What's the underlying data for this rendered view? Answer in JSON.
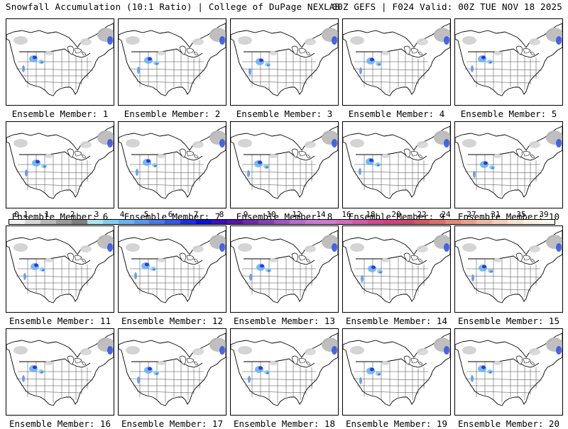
{
  "header": {
    "left": "Snowfall Accumulation (10:1 Ratio) | College of DuPage NEXLAB",
    "right": "00Z GEFS | F024 Valid: 00Z TUE NOV 18 2025"
  },
  "panels": [
    {
      "label": "Ensemble Member: 1"
    },
    {
      "label": "Ensemble Member: 2"
    },
    {
      "label": "Ensemble Member: 3"
    },
    {
      "label": "Ensemble Member: 4"
    },
    {
      "label": "Ensemble Member: 5"
    },
    {
      "label": "Ensemble Member: 6"
    },
    {
      "label": "Ensemble Member: 7"
    },
    {
      "label": "Ensemble Member: 8"
    },
    {
      "label": "Ensemble Member: 9"
    },
    {
      "label": "Ensemble Member: 10"
    },
    {
      "label": "Ensemble Member: 11"
    },
    {
      "label": "Ensemble Member: 12"
    },
    {
      "label": "Ensemble Member: 13"
    },
    {
      "label": "Ensemble Member: 14"
    },
    {
      "label": "Ensemble Member: 15"
    },
    {
      "label": "Ensemble Member: 16"
    },
    {
      "label": "Ensemble Member: 17"
    },
    {
      "label": "Ensemble Member: 18"
    },
    {
      "label": "Ensemble Member: 19"
    },
    {
      "label": "Ensemble Member: 20"
    }
  ],
  "colorbar": {
    "ticks": [
      "0.1",
      "1",
      "2",
      "3",
      "4",
      "5",
      "6",
      "7",
      "8",
      "9",
      "10",
      "12",
      "14",
      "16",
      "18",
      "20",
      "22",
      "24",
      "27",
      "31",
      "35",
      "39"
    ],
    "colors": [
      "#f2f2f2",
      "#d6d6d6",
      "#b8b8b8",
      "#9a9a9a",
      "#808080",
      "#a6e8ec",
      "#7fd0ef",
      "#69b3ee",
      "#5a97ec",
      "#4a79ea",
      "#3457e6",
      "#1e2fe0",
      "#0b10d8",
      "#3a0fb8",
      "#5714a5",
      "#6e2aa8",
      "#8540b2",
      "#9d57c0",
      "#b56ccb",
      "#c978d4",
      "#d07ad0",
      "#d46bc0",
      "#d458ab",
      "#d44896",
      "#d23f82",
      "#d2436f",
      "#d55663",
      "#dc6f68",
      "#e2877a",
      "#e9a08c",
      "#efb8a0",
      "#f4ceb6",
      "#f8e2cc",
      "#fcefe0",
      "#fff6ec"
    ]
  }
}
